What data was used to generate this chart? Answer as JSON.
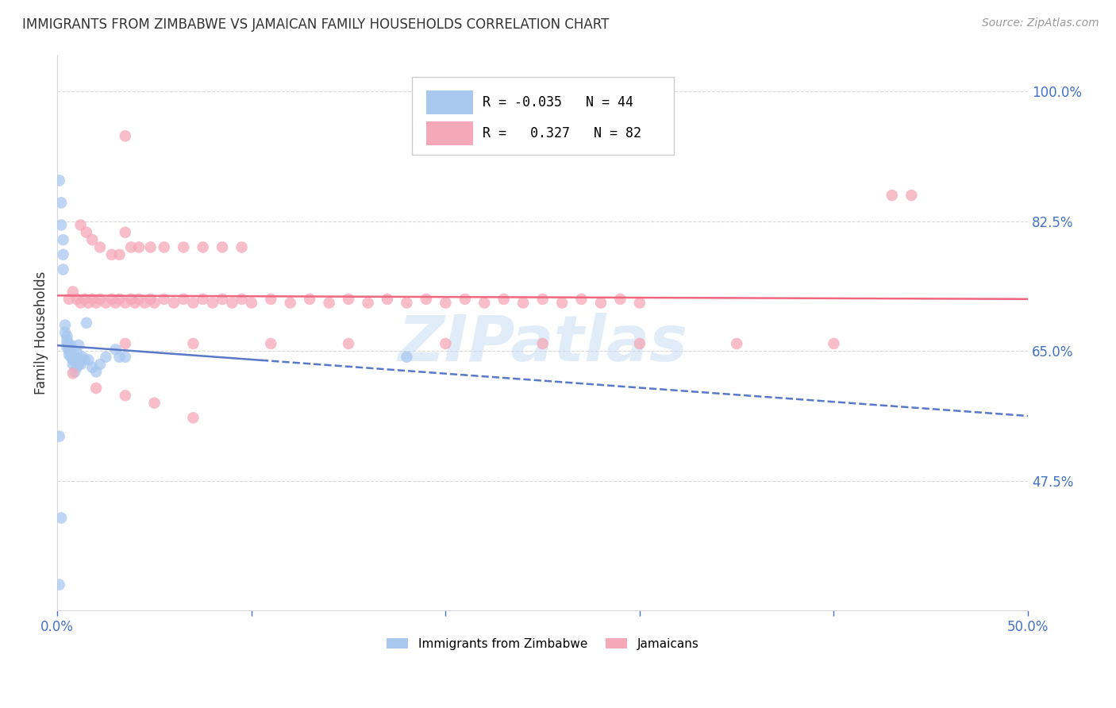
{
  "title": "IMMIGRANTS FROM ZIMBABWE VS JAMAICAN FAMILY HOUSEHOLDS CORRELATION CHART",
  "source": "Source: ZipAtlas.com",
  "ylabel": "Family Households",
  "right_yticks": [
    "100.0%",
    "82.5%",
    "65.0%",
    "47.5%"
  ],
  "right_ytick_vals": [
    1.0,
    0.825,
    0.65,
    0.475
  ],
  "xlim": [
    0.0,
    0.5
  ],
  "ylim": [
    0.3,
    1.05
  ],
  "watermark": "ZIPatlas",
  "blue_color": "#a8c8f0",
  "pink_color": "#f5a8b8",
  "blue_line_color": "#5878c8",
  "pink_line_color": "#f06880",
  "grid_color": "#d8d8d8",
  "zim_x": [
    0.001,
    0.002,
    0.002,
    0.003,
    0.003,
    0.003,
    0.004,
    0.004,
    0.005,
    0.005,
    0.005,
    0.005,
    0.006,
    0.006,
    0.006,
    0.007,
    0.007,
    0.007,
    0.008,
    0.008,
    0.008,
    0.009,
    0.009,
    0.01,
    0.01,
    0.01,
    0.011,
    0.011,
    0.012,
    0.013,
    0.014,
    0.015,
    0.016,
    0.018,
    0.02,
    0.022,
    0.025,
    0.03,
    0.032,
    0.035,
    0.18,
    0.001,
    0.002,
    0.001
  ],
  "zim_y": [
    0.88,
    0.85,
    0.82,
    0.8,
    0.78,
    0.76,
    0.685,
    0.675,
    0.67,
    0.665,
    0.66,
    0.655,
    0.658,
    0.652,
    0.645,
    0.658,
    0.648,
    0.642,
    0.642,
    0.638,
    0.632,
    0.642,
    0.622,
    0.648,
    0.638,
    0.628,
    0.632,
    0.658,
    0.632,
    0.642,
    0.638,
    0.688,
    0.638,
    0.628,
    0.622,
    0.632,
    0.642,
    0.652,
    0.642,
    0.642,
    0.642,
    0.535,
    0.425,
    0.335
  ],
  "jam_x": [
    0.006,
    0.008,
    0.01,
    0.012,
    0.014,
    0.016,
    0.018,
    0.02,
    0.022,
    0.025,
    0.028,
    0.03,
    0.032,
    0.035,
    0.038,
    0.04,
    0.042,
    0.045,
    0.048,
    0.05,
    0.012,
    0.015,
    0.018,
    0.022,
    0.028,
    0.032,
    0.038,
    0.042,
    0.048,
    0.035,
    0.055,
    0.06,
    0.065,
    0.07,
    0.075,
    0.08,
    0.085,
    0.09,
    0.095,
    0.1,
    0.055,
    0.065,
    0.075,
    0.085,
    0.095,
    0.11,
    0.12,
    0.13,
    0.14,
    0.15,
    0.16,
    0.17,
    0.18,
    0.19,
    0.2,
    0.21,
    0.22,
    0.23,
    0.24,
    0.25,
    0.26,
    0.27,
    0.28,
    0.29,
    0.3,
    0.035,
    0.07,
    0.11,
    0.15,
    0.2,
    0.25,
    0.3,
    0.35,
    0.4,
    0.44,
    0.008,
    0.02,
    0.035,
    0.05,
    0.07,
    0.035,
    0.43
  ],
  "jam_y": [
    0.72,
    0.73,
    0.72,
    0.715,
    0.72,
    0.715,
    0.72,
    0.715,
    0.72,
    0.715,
    0.72,
    0.715,
    0.72,
    0.715,
    0.72,
    0.715,
    0.72,
    0.715,
    0.72,
    0.715,
    0.82,
    0.81,
    0.8,
    0.79,
    0.78,
    0.78,
    0.79,
    0.79,
    0.79,
    0.81,
    0.72,
    0.715,
    0.72,
    0.715,
    0.72,
    0.715,
    0.72,
    0.715,
    0.72,
    0.715,
    0.79,
    0.79,
    0.79,
    0.79,
    0.79,
    0.72,
    0.715,
    0.72,
    0.715,
    0.72,
    0.715,
    0.72,
    0.715,
    0.72,
    0.715,
    0.72,
    0.715,
    0.72,
    0.715,
    0.72,
    0.715,
    0.72,
    0.715,
    0.72,
    0.715,
    0.66,
    0.66,
    0.66,
    0.66,
    0.66,
    0.66,
    0.66,
    0.66,
    0.66,
    0.86,
    0.62,
    0.6,
    0.59,
    0.58,
    0.56,
    0.94,
    0.86
  ]
}
